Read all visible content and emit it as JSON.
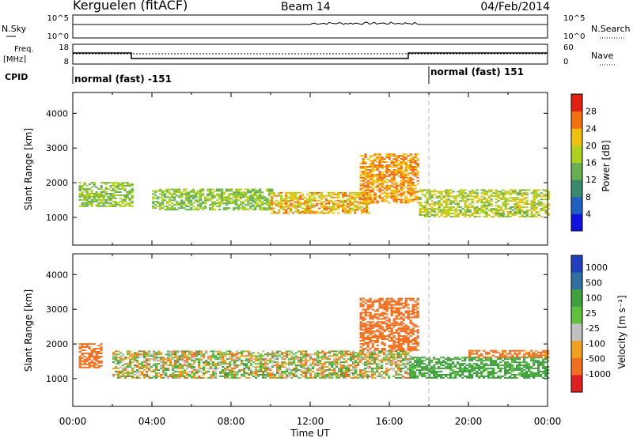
{
  "header": {
    "station": "Kerguelen (fitACF)",
    "beam": "Beam 14",
    "date": "04/Feb/2014"
  },
  "noise_panel": {
    "left_label": "N.Sky",
    "left_ticks": [
      "10^5",
      "10^0"
    ],
    "right_label": "N.Search",
    "right_ticks": [
      "10^5",
      "10^0"
    ]
  },
  "freq_panel": {
    "left_label_line1": "Freq.",
    "left_label_line2": "[MHz]",
    "left_ticks": [
      "18",
      "8"
    ],
    "right_label": "Nave",
    "right_ticks": [
      "60",
      "0"
    ]
  },
  "cpid": {
    "label": "CPID",
    "segment1": "normal (fast) -151",
    "segment2": "normal (fast) 151"
  },
  "time_axis": {
    "label": "Time UT",
    "ticks": [
      "00:00",
      "04:00",
      "08:00",
      "12:00",
      "16:00",
      "20:00",
      "00:00"
    ]
  },
  "chart_data": [
    {
      "type": "heatmap",
      "title": "Power",
      "ylabel": "Slant Range [km]",
      "y_ticks": [
        "1000",
        "2000",
        "3000",
        "4000"
      ],
      "xlim_hours": [
        0,
        24
      ],
      "ylim_km": [
        200,
        4600
      ],
      "colorbar": {
        "label": "Power [dB]",
        "ticks": [
          "4",
          "8",
          "12",
          "16",
          "20",
          "24",
          "28"
        ],
        "colors": [
          "#1010e0",
          "#2060c0",
          "#3a8a70",
          "#66b050",
          "#b0d020",
          "#f0c010",
          "#f07010",
          "#e02010"
        ]
      },
      "echo_regions_approx": [
        {
          "t_start": 0.3,
          "t_end": 3.0,
          "range_lo": 1300,
          "range_hi": 2000,
          "power_db": 16
        },
        {
          "t_start": 4.0,
          "t_end": 10.0,
          "range_lo": 1200,
          "range_hi": 1800,
          "power_db": 16
        },
        {
          "t_start": 10.0,
          "t_end": 15.0,
          "range_lo": 1100,
          "range_hi": 1700,
          "power_db": 22
        },
        {
          "t_start": 14.5,
          "t_end": 17.5,
          "range_lo": 1400,
          "range_hi": 2800,
          "power_db": 24
        },
        {
          "t_start": 17.5,
          "t_end": 24.0,
          "range_lo": 1000,
          "range_hi": 1800,
          "power_db": 18
        }
      ]
    },
    {
      "type": "heatmap",
      "title": "Velocity",
      "ylabel": "Slant Range [km]",
      "y_ticks": [
        "1000",
        "2000",
        "3000",
        "4000"
      ],
      "xlim_hours": [
        0,
        24
      ],
      "ylim_km": [
        200,
        4600
      ],
      "colorbar": {
        "label": "Velocity [m s⁻¹]",
        "ticks": [
          "1000",
          "500",
          "100",
          "25",
          "-25",
          "-100",
          "-500",
          "-1000"
        ],
        "colors": [
          "#2040c0",
          "#3070a0",
          "#40a040",
          "#60c040",
          "#c0c0c0",
          "#f0a020",
          "#f07020",
          "#e02020"
        ]
      },
      "echo_regions_approx": [
        {
          "t_start": 0.3,
          "t_end": 1.5,
          "range_lo": 1300,
          "range_hi": 2000,
          "velocity": -300
        },
        {
          "t_start": 2.0,
          "t_end": 17.0,
          "range_lo": 1000,
          "range_hi": 1800,
          "velocity": 0
        },
        {
          "t_start": 14.5,
          "t_end": 17.5,
          "range_lo": 1800,
          "range_hi": 3300,
          "velocity": -300
        },
        {
          "t_start": 17.0,
          "t_end": 24.0,
          "range_lo": 1000,
          "range_hi": 1600,
          "velocity": 200
        },
        {
          "t_start": 20.0,
          "t_end": 24.0,
          "range_lo": 1600,
          "range_hi": 1800,
          "velocity": -200
        }
      ]
    }
  ]
}
